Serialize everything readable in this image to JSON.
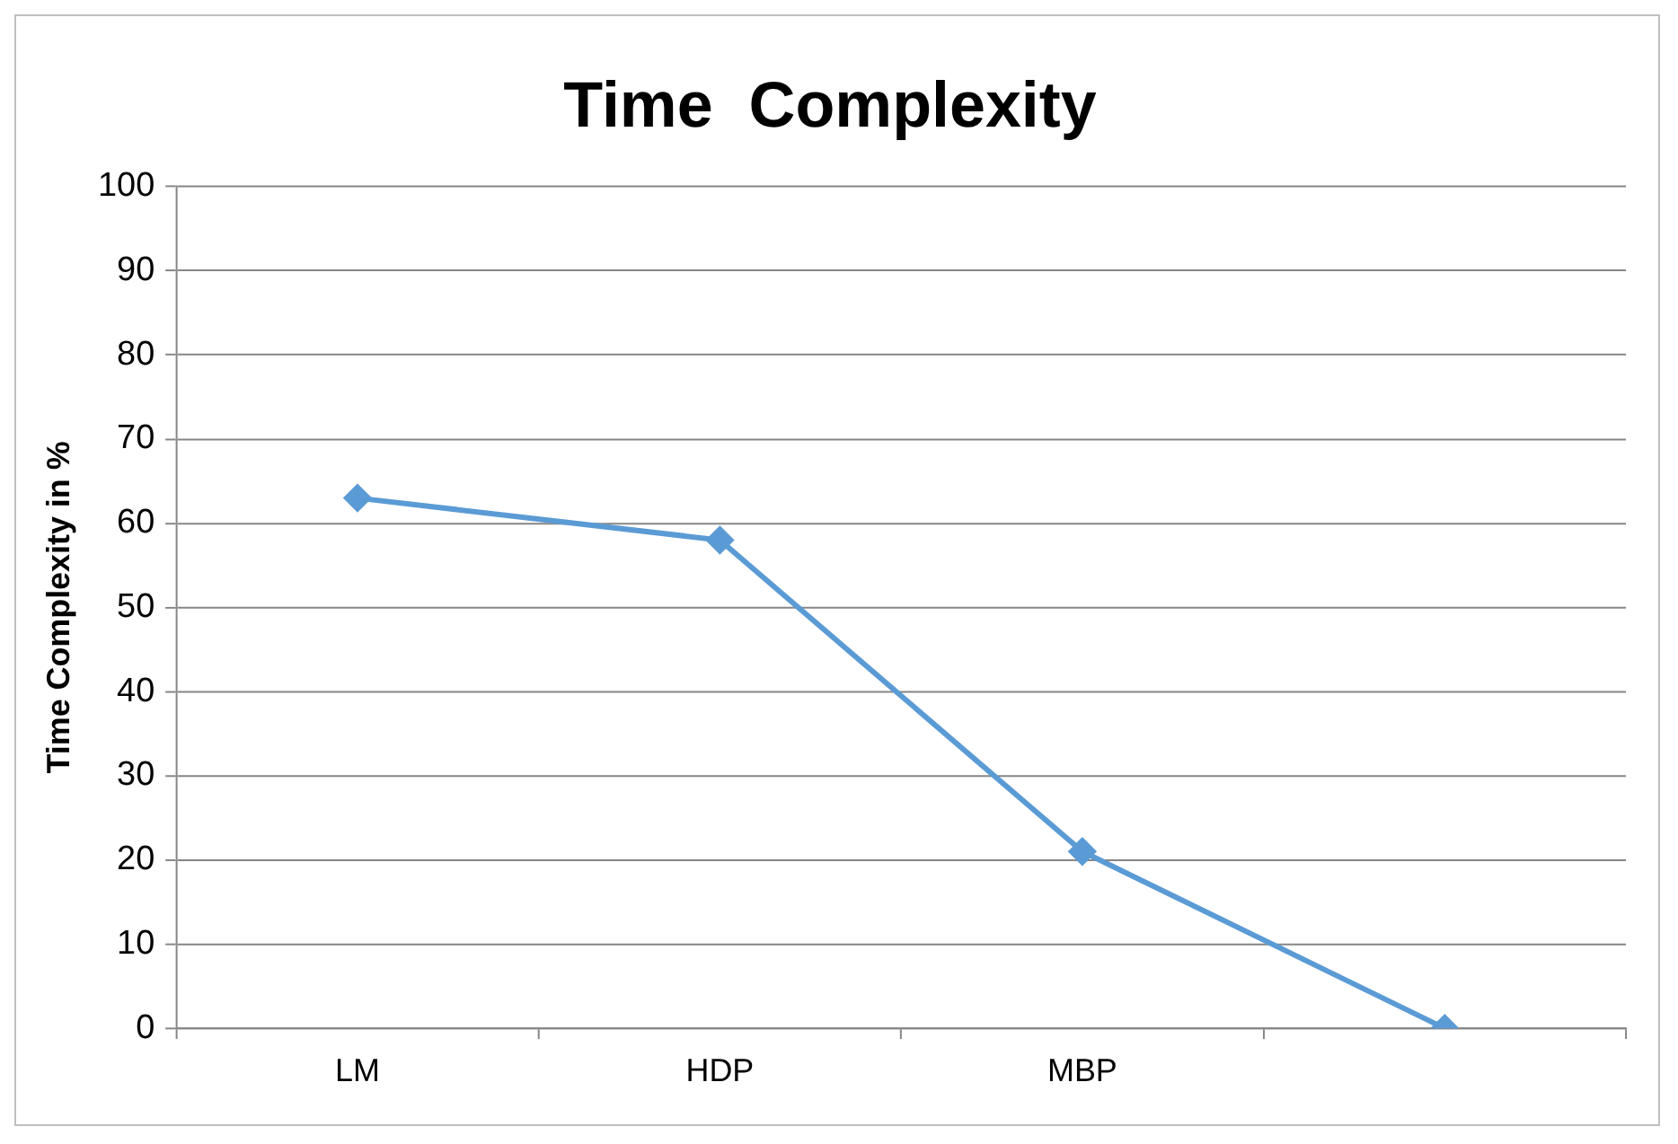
{
  "chart_data": {
    "type": "line",
    "title": "Time  Complexity",
    "ylabel": "Time Complexity in %",
    "categories": [
      "LM",
      "HDP",
      "MBP",
      null
    ],
    "series": [
      {
        "color": "#5b9bd5",
        "values": [
          63,
          58,
          21,
          0
        ]
      }
    ],
    "ylim": [
      0,
      100
    ],
    "yticks": [
      0,
      10,
      20,
      30,
      40,
      50,
      60,
      70,
      80,
      90,
      100
    ],
    "grid": "y",
    "marker": "diamond",
    "line_style": "solid",
    "legend": false
  }
}
